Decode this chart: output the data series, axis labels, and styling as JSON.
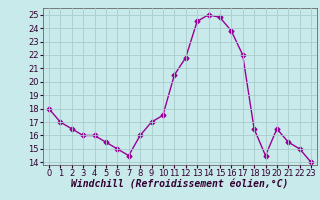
{
  "x": [
    0,
    1,
    2,
    3,
    4,
    5,
    6,
    7,
    8,
    9,
    10,
    11,
    12,
    13,
    14,
    15,
    16,
    17,
    18,
    19,
    20,
    21,
    22,
    23
  ],
  "y": [
    18,
    17,
    16.5,
    16,
    16,
    15.5,
    15,
    14.5,
    16,
    17,
    17.5,
    20.5,
    21.8,
    24.5,
    25,
    24.8,
    23.8,
    22,
    16.5,
    14.5,
    16.5,
    15.5,
    15,
    14
  ],
  "line_color": "#990099",
  "marker": "D",
  "marker_size": 2.5,
  "bg_color": "#c8eaea",
  "grid_color": "#aacccc",
  "xlabel": "Windchill (Refroidissement éolien,°C)",
  "xlabel_fontsize": 7,
  "ylim": [
    13.8,
    25.5
  ],
  "yticks": [
    14,
    15,
    16,
    17,
    18,
    19,
    20,
    21,
    22,
    23,
    24,
    25
  ],
  "xticks": [
    0,
    1,
    2,
    3,
    4,
    5,
    6,
    7,
    8,
    9,
    10,
    11,
    12,
    13,
    14,
    15,
    16,
    17,
    18,
    19,
    20,
    21,
    22,
    23
  ],
  "xlim": [
    -0.5,
    23.5
  ],
  "tick_fontsize": 6
}
